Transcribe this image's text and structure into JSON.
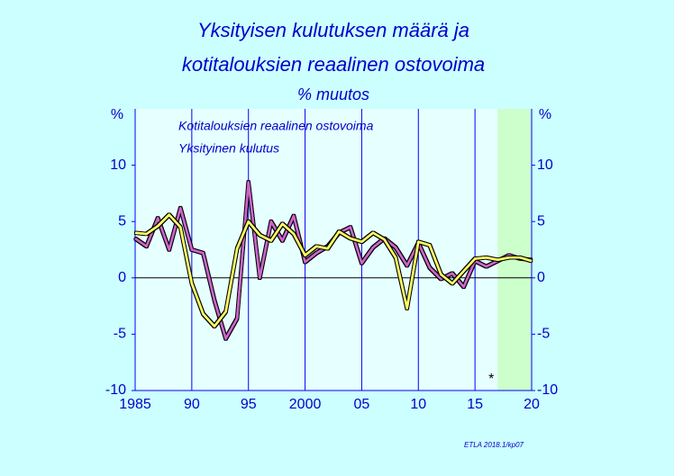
{
  "chart_data": {
    "type": "line",
    "title": [
      "Yksityisen kulutuksen määrä ja",
      "kotitalouksien reaalinen ostovoima"
    ],
    "subtitle": "% muutos",
    "y_label": "%",
    "x": [
      1985,
      1986,
      1987,
      1988,
      1989,
      1990,
      1991,
      1992,
      1993,
      1994,
      1995,
      1996,
      1997,
      1998,
      1999,
      2000,
      2001,
      2002,
      2003,
      2004,
      2005,
      2006,
      2007,
      2008,
      2009,
      2010,
      2011,
      2012,
      2013,
      2014,
      2015,
      2016,
      2017,
      2018,
      2019,
      2020
    ],
    "series": [
      {
        "name": "Kotitalouksien reaalinen ostovoima",
        "color": "#cc66cc",
        "values": [
          3.5,
          2.8,
          5.3,
          2.5,
          6.2,
          2.5,
          2.2,
          -2.0,
          -5.4,
          -3.6,
          8.5,
          0.0,
          5.0,
          3.3,
          5.5,
          1.4,
          2.2,
          2.8,
          4.0,
          4.5,
          1.3,
          2.7,
          3.5,
          2.7,
          1.1,
          3.1,
          0.9,
          -0.1,
          0.4,
          -0.8,
          1.5,
          1.0,
          1.5,
          2.0,
          1.7,
          1.6
        ]
      },
      {
        "name": "Yksityinen kulutus",
        "color": "#ffff66",
        "values": [
          4.0,
          3.9,
          4.6,
          5.6,
          4.5,
          -0.5,
          -3.2,
          -4.3,
          -3.0,
          2.6,
          5.0,
          3.8,
          3.3,
          4.8,
          3.9,
          2.0,
          2.8,
          2.6,
          4.1,
          3.5,
          3.2,
          4.0,
          3.4,
          1.8,
          -2.7,
          3.2,
          2.9,
          0.3,
          -0.5,
          0.6,
          1.7,
          1.8,
          1.6,
          1.8,
          1.8,
          1.5
        ]
      }
    ],
    "xlim": [
      1985,
      2020
    ],
    "xticks": [
      1985,
      {
        "value": 1990,
        "label": "90"
      },
      {
        "value": 1995,
        "label": "95"
      },
      2000,
      {
        "value": 2005,
        "label": "05"
      },
      {
        "value": 2010,
        "label": "10"
      },
      {
        "value": 2015,
        "label": "15"
      },
      {
        "value": 2020,
        "label": "20"
      }
    ],
    "ylim": [
      -10,
      15
    ],
    "yticks": [
      -10,
      -5,
      0,
      5,
      10
    ],
    "forecast_start": 2017,
    "forecast_color": "#ccffcc",
    "annotation": "*",
    "legend": "top-left",
    "source": "ETLA 2018.1/kp07"
  }
}
